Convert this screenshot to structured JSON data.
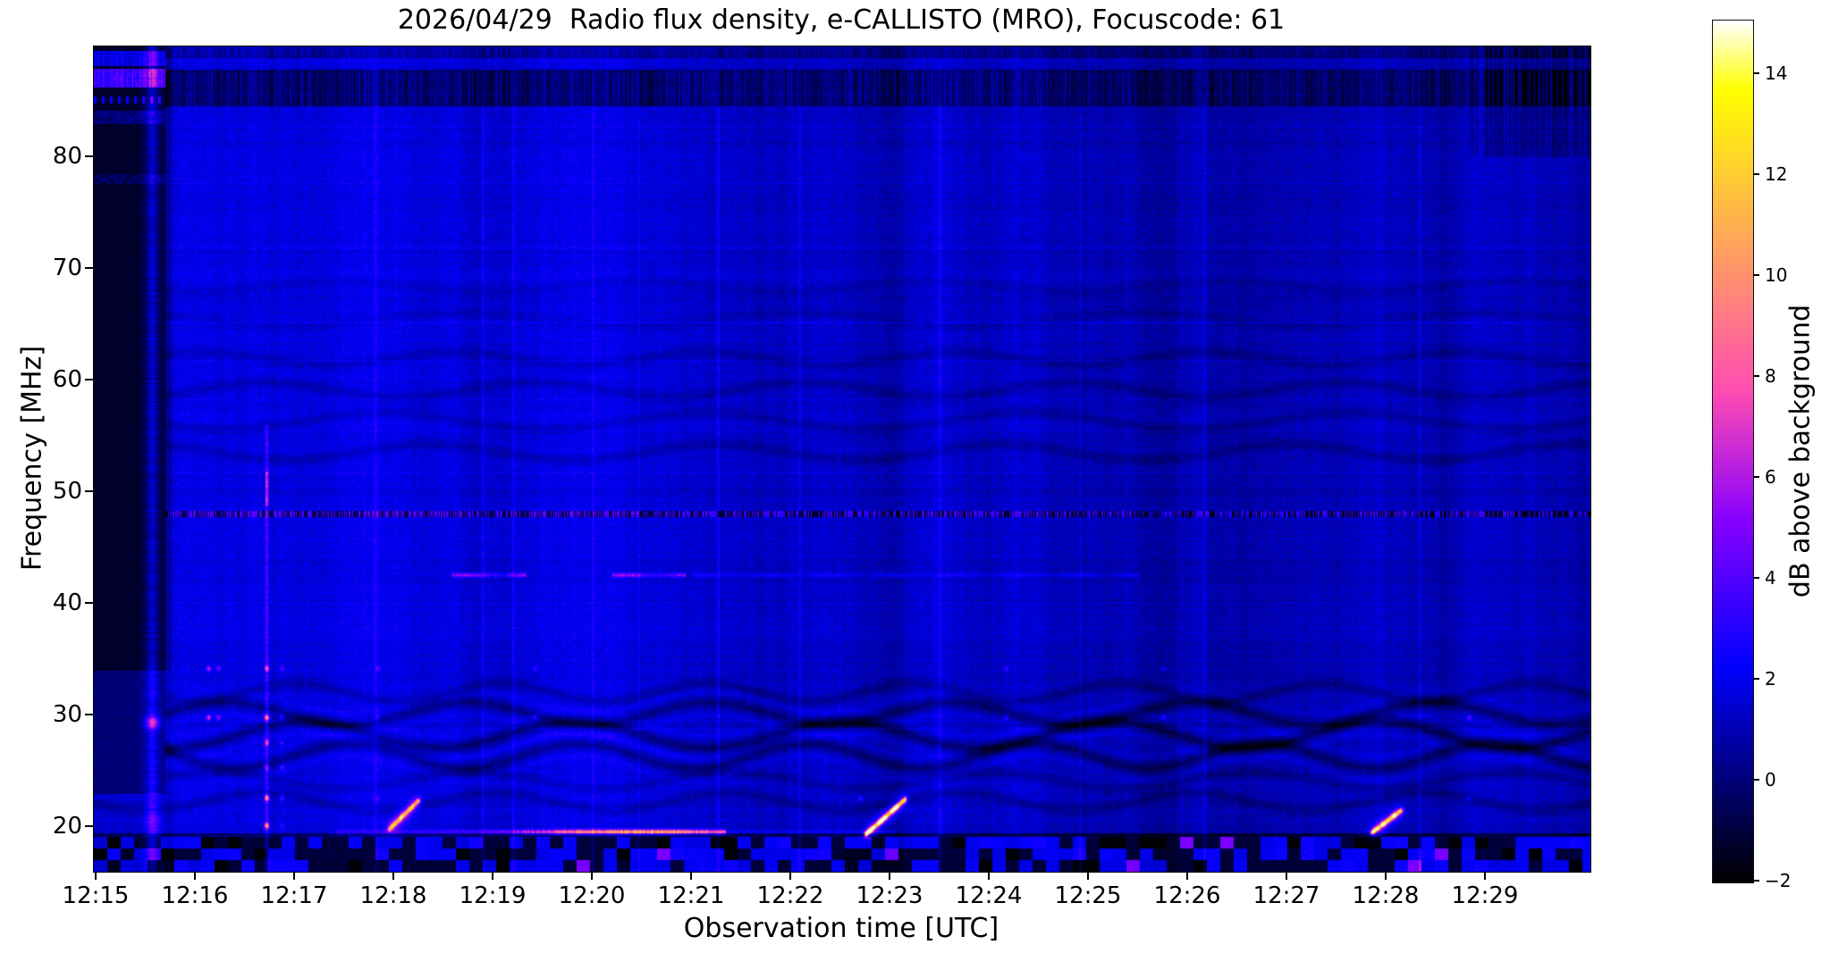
{
  "figure": {
    "background": "#ffffff",
    "text_color": "#000000"
  },
  "chart_data": {
    "type": "heatmap",
    "subtype": "radio-spectrogram",
    "title": "2026/04/29  Radio flux density, e-CALLISTO (MRO), Focuscode: 61",
    "xlabel": "Observation time [UTC]",
    "ylabel": "Frequency [MHz]",
    "x_ticks": [
      "12:15",
      "12:16",
      "12:17",
      "12:18",
      "12:19",
      "12:20",
      "12:21",
      "12:22",
      "12:23",
      "12:24",
      "12:25",
      "12:26",
      "12:27",
      "12:28",
      "12:29"
    ],
    "x_range": [
      "12:15:00",
      "12:30:03"
    ],
    "y_ticks": [
      20,
      30,
      40,
      50,
      60,
      70,
      80
    ],
    "y_range_mhz": [
      16.0,
      89.9
    ],
    "grid": false,
    "background_noise_db": [
      0,
      2
    ],
    "colorbar": {
      "label": "dB above background",
      "ticks": [
        14,
        12,
        10,
        8,
        6,
        4,
        2,
        0,
        -2
      ],
      "range": [
        -2.0,
        15.1
      ],
      "colormap": "gnuplot2",
      "anchors": {
        "-2": "#000000",
        "0": "#000079",
        "2": "#0000f0",
        "4": "#5200ff",
        "6": "#b019e6",
        "8": "#ff55aa",
        "10": "#ff916e",
        "12": "#ffcd33",
        "14": "#ffff39",
        "15": "#ffffff"
      }
    },
    "features": [
      {
        "kind": "dark-block",
        "time_range": [
          "12:15:00",
          "12:15:43"
        ],
        "freq_range": [
          34,
          90
        ],
        "note": "black start block with bright dashed RFI bands near 83.5, 85, 86.5-88 and 88.5-89.5 MHz"
      },
      {
        "kind": "vertical-bright-stripe",
        "time": "12:15:34",
        "freq_range": [
          16,
          90
        ],
        "peak_db": 7,
        "note": "broad blue stripe with magenta spot at 29.3 MHz"
      },
      {
        "kind": "vertical-thin-line",
        "time": "12:16:43",
        "freq_range": [
          16,
          56
        ],
        "peak_db": 8,
        "hot_dot_freqs_mhz": [
          34.2,
          29.8,
          27.6,
          25.3,
          22.6,
          20.1
        ],
        "note": "thin line, magenta 49-52 MHz, orange dots below 35 MHz"
      },
      {
        "kind": "dot-column",
        "time": "12:16:08",
        "freqs_mhz": [
          34.2,
          29.8
        ],
        "peak_db": 6
      },
      {
        "kind": "dot-column",
        "time": "12:16:14",
        "freqs_mhz": [
          34.2,
          29.8
        ],
        "peak_db": 4
      },
      {
        "kind": "dot-column",
        "time": "12:16:52",
        "freqs_mhz": [
          34.2,
          29.8,
          27.6,
          25.3,
          22.6,
          20.1
        ],
        "peak_db": 3
      },
      {
        "kind": "dot-column",
        "time": "12:17:50",
        "freqs_mhz": [
          34.2,
          29.8,
          22.6
        ],
        "peak_db": 3
      },
      {
        "kind": "dot-column",
        "time": "12:19:25",
        "freqs_mhz": [
          34.2,
          29.8
        ],
        "peak_db": 3
      },
      {
        "kind": "dot-column",
        "time": "12:22:42",
        "freqs_mhz": [
          22.5
        ],
        "peak_db": 3
      },
      {
        "kind": "dot-column",
        "time": "12:24:10",
        "freqs_mhz": [
          34.2,
          29.8
        ],
        "peak_db": 3
      },
      {
        "kind": "dot-column",
        "time": "12:25:45",
        "freqs_mhz": [
          29.8,
          34.2
        ],
        "peak_db": 3
      },
      {
        "kind": "dot-column",
        "time": "12:28:50",
        "freqs_mhz": [
          29.8,
          22.5
        ],
        "peak_db": 3
      },
      {
        "kind": "dashed-dark-band",
        "freq_range": [
          84.6,
          87.9
        ],
        "time_range": [
          "12:15:43",
          "12:30:00"
        ],
        "note": "dark dashed RFI band across top"
      },
      {
        "kind": "dotted-line",
        "freq_mhz": 48.0,
        "time_range": [
          "12:15:00",
          "12:30:00"
        ],
        "note": "black/blue dotted RFI line"
      },
      {
        "kind": "bright-segment",
        "freq_mhz": 42.6,
        "time_range": [
          "12:18:35",
          "12:19:20"
        ],
        "peak_db": 4
      },
      {
        "kind": "bright-segment",
        "freq_mhz": 42.6,
        "time_range": [
          "12:20:12",
          "12:20:56"
        ],
        "peak_db": 4
      },
      {
        "kind": "bright-segment",
        "freq_mhz": 42.6,
        "time_range": [
          "12:21:00",
          "12:25:30"
        ],
        "peak_db": 1.3
      },
      {
        "kind": "bright-line",
        "freq_mhz": 19.6,
        "time_range": [
          "12:17:25",
          "12:21:20"
        ],
        "peak_time": "12:20:30",
        "peak_db": 10,
        "note": "intense RFI line, orange-white near 12:20:30"
      },
      {
        "kind": "diagonal-burst",
        "time_range": [
          "12:17:57",
          "12:18:15"
        ],
        "freq_range": [
          19.8,
          22.4
        ],
        "peak_db": 6
      },
      {
        "kind": "diagonal-burst",
        "time_range": [
          "12:22:45",
          "12:23:09"
        ],
        "freq_range": [
          19.3,
          22.5
        ],
        "peak_db": 9
      },
      {
        "kind": "diagonal-burst",
        "time_range": [
          "12:27:51",
          "12:28:09"
        ],
        "freq_range": [
          19.5,
          21.5
        ],
        "peak_db": 8
      },
      {
        "kind": "faint-vertical-lines",
        "times": [
          "12:17:49",
          "12:18:54",
          "12:19:12",
          "12:20:00",
          "12:20:28",
          "12:21:16",
          "12:22:05",
          "12:23:30",
          "12:24:55",
          "12:26:10",
          "12:28:20"
        ],
        "peak_db": 1.5
      },
      {
        "kind": "wavy-interference",
        "freq_range": [
          25,
          33
        ],
        "depth_db": 1.7,
        "note": "strong sinuous dark/bright fringes, full duration"
      },
      {
        "kind": "wavy-interference",
        "freq_range": [
          52,
          70
        ],
        "depth_db": 0.8,
        "note": "fainter sinuous fringes"
      },
      {
        "kind": "speckle-band",
        "freq_range": [
          16,
          19.2
        ],
        "note": "black band with bright blue RFI blocks along bottom edge"
      }
    ]
  }
}
